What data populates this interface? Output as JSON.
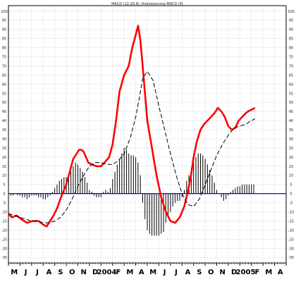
{
  "chart_data": {
    "type": "line",
    "title": "MACD (12,26,9), Histogramma MACD (9)",
    "ylim": [
      -38,
      103
    ],
    "grid": true,
    "y_ticks": [
      100,
      95,
      90,
      85,
      80,
      75,
      70,
      65,
      60,
      55,
      50,
      45,
      40,
      35,
      30,
      25,
      20,
      15,
      10,
      5,
      0,
      -5,
      -10,
      -15,
      -20,
      -25,
      -30,
      -35
    ],
    "x_labels": [
      "M",
      "J",
      "J",
      "A",
      "S",
      "O",
      "N",
      "D",
      "2004",
      "F",
      "M",
      "A",
      "M",
      "J",
      "J",
      "A",
      "S",
      "O",
      "N",
      "D",
      "2005",
      "F",
      "M",
      "A"
    ],
    "x_label_positions": [
      0.5,
      1.5,
      2.5,
      3.5,
      4.5,
      5.5,
      6.5,
      7.5,
      8.5,
      9.5,
      10.5,
      11.5,
      12.5,
      13.5,
      14.5,
      15.5,
      16.5,
      17.5,
      18.5,
      19.5,
      20.5,
      21.5,
      22.5,
      23.5
    ],
    "x_range": [
      0,
      24
    ],
    "colors": {
      "macd": "#ff0000",
      "signal": "#000000",
      "histogram": "#000000",
      "zero_line": "#0000ff",
      "grid": "#b4b4b4"
    },
    "series": [
      {
        "name": "MACD",
        "style": "solid",
        "x": [
          0,
          0.3,
          0.7,
          1.1,
          1.6,
          2.1,
          2.6,
          3.0,
          3.3,
          3.6,
          3.9,
          4.2,
          4.6,
          5.0,
          5.3,
          5.6,
          5.9,
          6.1,
          6.3,
          6.5,
          6.7,
          6.9,
          7.2,
          7.6,
          8.0,
          8.3,
          8.7,
          9.0,
          9.3,
          9.6,
          10.0,
          10.4,
          10.7,
          11.0,
          11.2,
          11.4,
          11.6,
          11.8,
          12.0,
          12.4,
          12.8,
          13.2,
          13.6,
          14.0,
          14.4,
          14.8,
          15.2,
          15.5,
          15.8,
          16.0,
          16.3,
          16.6,
          16.9,
          17.2,
          17.5,
          17.8,
          18.1,
          18.4,
          18.7,
          19.0,
          19.3,
          19.6,
          19.9,
          20.2,
          20.5,
          20.7,
          21.0,
          21.3
        ],
        "y": [
          -11,
          -13,
          -12,
          -14,
          -16,
          -15,
          -15,
          -17,
          -18,
          -15,
          -12,
          -8,
          -1,
          5,
          12,
          19,
          22,
          24,
          24,
          23,
          20,
          17,
          16,
          15,
          15,
          17,
          20,
          27,
          40,
          56,
          65,
          70,
          80,
          87,
          92,
          84,
          70,
          55,
          40,
          25,
          10,
          -2,
          -10,
          -15,
          -16,
          -13,
          -7,
          1,
          11,
          20,
          29,
          35,
          38,
          40,
          42,
          44,
          47,
          45,
          42,
          37,
          35,
          36,
          40,
          42,
          44,
          45,
          46,
          47
        ]
      },
      {
        "name": "Signal",
        "style": "dashed",
        "x": [
          0,
          0.5,
          1.0,
          1.5,
          2.0,
          2.5,
          3.0,
          3.5,
          4.0,
          4.5,
          5.0,
          5.5,
          6.0,
          6.5,
          7.0,
          7.5,
          8.0,
          8.5,
          9.0,
          9.5,
          10.0,
          10.5,
          11.0,
          11.3,
          11.6,
          12.0,
          12.5,
          13.0,
          13.5,
          14.0,
          14.5,
          15.0,
          15.5,
          16.0,
          16.5,
          17.0,
          17.5,
          18.0,
          18.5,
          19.0,
          19.5,
          20.0,
          20.5,
          21.0,
          21.3
        ],
        "y": [
          -11,
          -12,
          -13,
          -14,
          -15,
          -15,
          -16,
          -16,
          -15,
          -13,
          -9,
          -3,
          4,
          10,
          15,
          17,
          17,
          16,
          16,
          18,
          22,
          30,
          42,
          52,
          63,
          67,
          62,
          48,
          35,
          22,
          10,
          0,
          -6,
          -7,
          -3,
          5,
          13,
          21,
          27,
          32,
          36,
          37,
          38,
          40,
          41
        ]
      }
    ],
    "histogram": {
      "x": [
        0.2,
        0.4,
        0.6,
        0.8,
        1.0,
        1.2,
        1.4,
        1.6,
        1.8,
        2.0,
        2.2,
        2.4,
        2.6,
        2.8,
        3.0,
        3.2,
        3.4,
        3.6,
        3.8,
        4.0,
        4.2,
        4.4,
        4.6,
        4.8,
        5.0,
        5.2,
        5.4,
        5.6,
        5.8,
        6.0,
        6.2,
        6.4,
        6.6,
        6.8,
        7.0,
        7.2,
        7.4,
        7.6,
        7.8,
        8.0,
        8.2,
        8.4,
        8.6,
        8.8,
        9.0,
        9.2,
        9.4,
        9.6,
        9.8,
        10.0,
        10.2,
        10.4,
        10.6,
        10.8,
        11.0,
        11.2,
        11.4,
        11.6,
        11.8,
        12.0,
        12.2,
        12.4,
        12.6,
        12.8,
        13.0,
        13.2,
        13.4,
        13.6,
        13.8,
        14.0,
        14.2,
        14.4,
        14.6,
        14.8,
        15.0,
        15.2,
        15.4,
        15.6,
        15.8,
        16.0,
        16.2,
        16.4,
        16.6,
        16.8,
        17.0,
        17.2,
        17.4,
        17.6,
        17.8,
        18.0,
        18.2,
        18.4,
        18.6,
        18.8,
        19.0,
        19.2,
        19.4,
        19.6,
        19.8,
        20.0,
        20.2,
        20.4,
        20.6,
        20.8,
        21.0,
        21.2
      ],
      "y": [
        -1,
        -1,
        0,
        -1,
        -1,
        -2,
        -2,
        -3,
        -2,
        -1,
        -1,
        -1,
        -2,
        -2,
        -3,
        -3,
        -2,
        -1,
        1,
        3,
        5,
        7,
        8,
        9,
        9,
        10,
        12,
        15,
        17,
        16,
        14,
        12,
        9,
        6,
        2,
        1,
        -1,
        -2,
        -2,
        -2,
        1,
        2,
        1,
        3,
        8,
        12,
        16,
        19,
        22,
        25,
        24,
        22,
        21,
        21,
        20,
        17,
        10,
        -5,
        -14,
        -20,
        -22,
        -23,
        -23,
        -23,
        -23,
        -22,
        -21,
        -16,
        -12,
        -10,
        -7,
        -5,
        -4,
        -4,
        -2,
        2,
        7,
        10,
        14,
        17,
        20,
        22,
        22,
        21,
        19,
        16,
        13,
        10,
        6,
        2,
        0,
        -2,
        -4,
        -3,
        -1,
        1,
        2,
        3,
        4,
        4,
        5,
        5,
        5,
        5,
        5,
        5
      ]
    }
  }
}
